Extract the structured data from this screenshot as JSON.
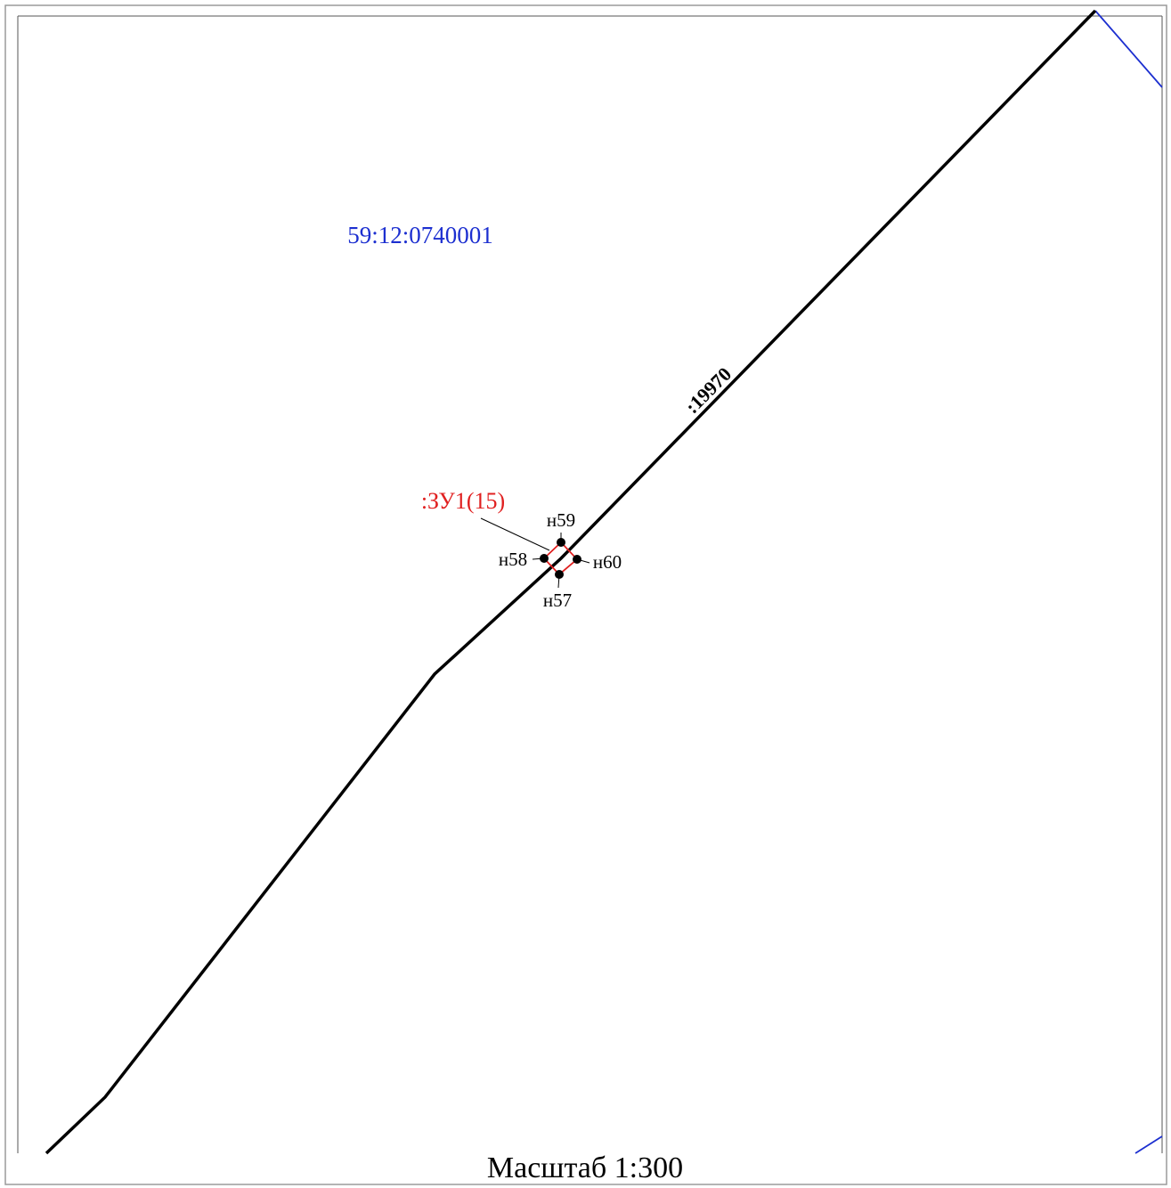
{
  "quarter_label": "59:12:0740001",
  "parcel_label": ":19970",
  "plot_label": ":ЗУ1(15)",
  "points": [
    {
      "label": "н59"
    },
    {
      "label": "н58"
    },
    {
      "label": "н60"
    },
    {
      "label": "н57"
    }
  ],
  "scale": "Масштаб 1:300"
}
